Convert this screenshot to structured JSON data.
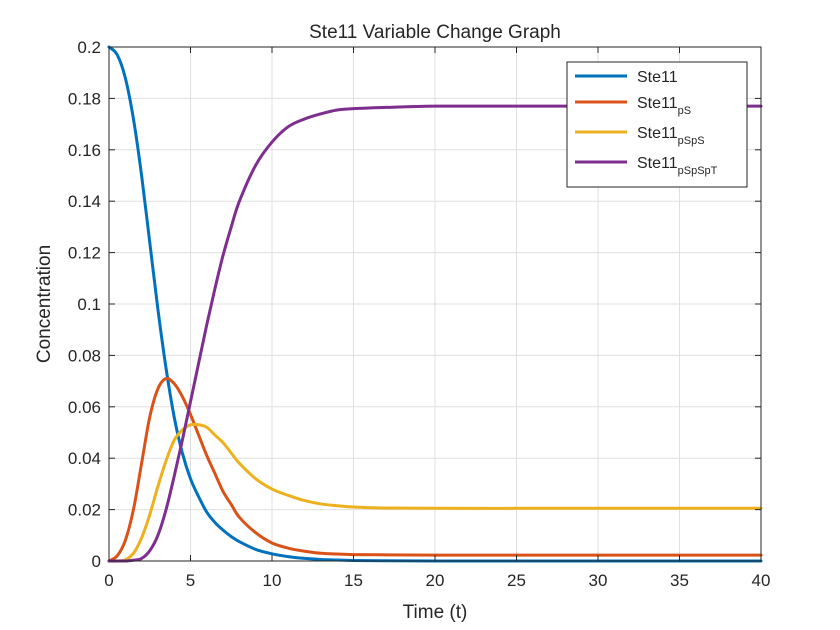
{
  "chart_data": {
    "type": "line",
    "title": "Ste11 Variable Change Graph",
    "xlabel": "Time (t)",
    "ylabel": "Concentration",
    "xlim": [
      0,
      40
    ],
    "ylim": [
      0,
      0.2
    ],
    "xticks": [
      "0",
      "5",
      "10",
      "15",
      "20",
      "25",
      "30",
      "35",
      "40"
    ],
    "yticks": [
      "0",
      "0.02",
      "0.04",
      "0.06",
      "0.08",
      "0.1",
      "0.12",
      "0.14",
      "0.16",
      "0.18",
      "0.2"
    ],
    "grid": true,
    "legend_position": "top-right",
    "x": [
      0,
      0.5,
      1,
      1.5,
      2,
      2.5,
      3,
      3.5,
      4,
      4.5,
      5,
      5.5,
      6,
      6.5,
      7,
      7.5,
      8,
      9,
      10,
      11,
      12,
      13,
      14,
      15,
      17,
      20,
      25,
      30,
      35,
      40
    ],
    "series": [
      {
        "name": "Ste11",
        "name_sub": "",
        "color": "#0072BD",
        "values": [
          0.2,
          0.197,
          0.188,
          0.172,
          0.15,
          0.124,
          0.098,
          0.075,
          0.056,
          0.042,
          0.032,
          0.025,
          0.019,
          0.015,
          0.012,
          0.0095,
          0.0075,
          0.0045,
          0.0028,
          0.0017,
          0.001,
          0.0006,
          0.0004,
          0.0002,
          0.0001,
          0.0,
          0.0,
          0.0,
          0.0,
          0.0
        ]
      },
      {
        "name": "Ste11",
        "name_sub": "pS",
        "color": "#D95319",
        "values": [
          0.0,
          0.002,
          0.008,
          0.02,
          0.038,
          0.056,
          0.067,
          0.071,
          0.069,
          0.064,
          0.057,
          0.049,
          0.041,
          0.034,
          0.027,
          0.022,
          0.017,
          0.011,
          0.007,
          0.005,
          0.0038,
          0.003,
          0.0027,
          0.0025,
          0.0024,
          0.0023,
          0.0023,
          0.0023,
          0.0023,
          0.0023
        ]
      },
      {
        "name": "Ste11",
        "name_sub": "pSpS",
        "color": "#EDB120",
        "values": [
          0.0,
          0.0,
          0.0005,
          0.003,
          0.009,
          0.018,
          0.029,
          0.039,
          0.047,
          0.051,
          0.053,
          0.053,
          0.052,
          0.049,
          0.046,
          0.042,
          0.038,
          0.032,
          0.028,
          0.0255,
          0.0235,
          0.0222,
          0.0215,
          0.021,
          0.0206,
          0.0205,
          0.0205,
          0.0205,
          0.0205,
          0.0205
        ]
      },
      {
        "name": "Ste11",
        "name_sub": "pSpSpT",
        "color": "#7E2F8E",
        "values": [
          0.0,
          0.0,
          0.0,
          0.0003,
          0.001,
          0.004,
          0.01,
          0.02,
          0.033,
          0.047,
          0.062,
          0.077,
          0.092,
          0.106,
          0.119,
          0.13,
          0.14,
          0.154,
          0.163,
          0.169,
          0.172,
          0.174,
          0.1755,
          0.176,
          0.1765,
          0.177,
          0.177,
          0.177,
          0.177,
          0.177
        ]
      }
    ]
  }
}
